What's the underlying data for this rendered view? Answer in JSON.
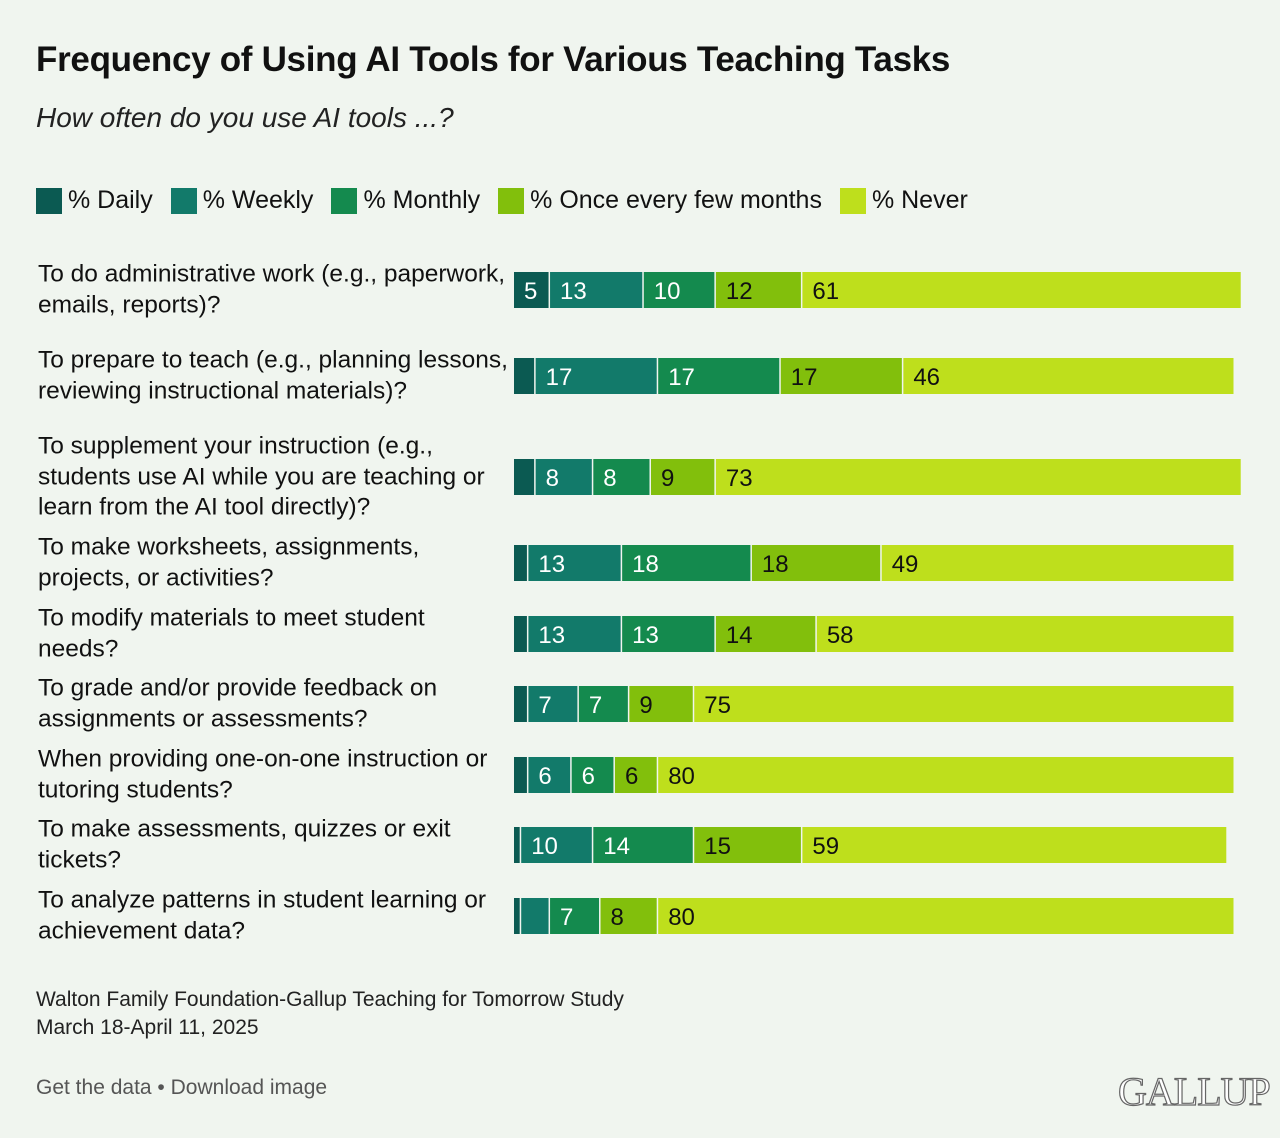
{
  "title": "Frequency of Using AI Tools for Various Teaching Tasks",
  "subtitle": "How often do you use AI tools ...?",
  "legend": [
    {
      "label": "% Daily",
      "color": "#0b5a52"
    },
    {
      "label": "% Weekly",
      "color": "#127a6a"
    },
    {
      "label": "% Monthly",
      "color": "#148a4e"
    },
    {
      "label": "% Once every few months",
      "color": "#82bf0c"
    },
    {
      "label": "% Never",
      "color": "#bedf1c"
    }
  ],
  "chart_data": {
    "type": "bar",
    "orientation": "horizontal",
    "stacked": true,
    "categories": [
      "To do administrative work (e.g., paperwork, emails, reports)?",
      "To prepare to teach (e.g., planning lessons, reviewing instructional materials)?",
      "To supplement your instruction (e.g., students use AI while you are teaching or learn from the AI tool directly)?",
      "To make worksheets, assignments, projects, or activities?",
      "To modify materials to meet student needs?",
      "To grade and/or provide feedback on assignments or assessments?",
      "When providing one-on-one instruction or tutoring students?",
      "To make assessments, quizzes or exit tickets?",
      "To analyze patterns in student learning or achievement data?"
    ],
    "series": [
      {
        "name": "% Daily",
        "color": "#0b5a52",
        "values": [
          5,
          3,
          3,
          2,
          2,
          2,
          2,
          1,
          1
        ]
      },
      {
        "name": "% Weekly",
        "color": "#127a6a",
        "values": [
          13,
          17,
          8,
          13,
          13,
          7,
          6,
          10,
          4
        ]
      },
      {
        "name": "% Monthly",
        "color": "#148a4e",
        "values": [
          10,
          17,
          8,
          18,
          13,
          7,
          6,
          14,
          7
        ]
      },
      {
        "name": "% Once every few months",
        "color": "#82bf0c",
        "values": [
          12,
          17,
          9,
          18,
          14,
          9,
          6,
          15,
          8
        ]
      },
      {
        "name": "% Never",
        "color": "#bedf1c",
        "values": [
          61,
          46,
          73,
          49,
          58,
          75,
          80,
          59,
          80
        ]
      }
    ],
    "data_labels": [
      [
        "5",
        "13",
        "10",
        "12",
        "61"
      ],
      [
        "",
        "17",
        "17",
        "17",
        "46"
      ],
      [
        "",
        "8",
        "8",
        "9",
        "73"
      ],
      [
        "",
        "13",
        "18",
        "18",
        "49"
      ],
      [
        "",
        "13",
        "13",
        "14",
        "58"
      ],
      [
        "",
        "7",
        "7",
        "9",
        "75"
      ],
      [
        "",
        "6",
        "6",
        "6",
        "80"
      ],
      [
        "",
        "10",
        "14",
        "15",
        "59"
      ],
      [
        "",
        "",
        "7",
        "8",
        "80"
      ]
    ],
    "xlim": [
      0,
      100
    ],
    "legend_position": "top-left",
    "grid": false
  },
  "source": {
    "line1": "Walton Family Foundation-Gallup Teaching for Tomorrow Study",
    "line2": "March 18-April 11, 2025"
  },
  "links": {
    "get_data": "Get the data",
    "separator": " • ",
    "download": "Download image"
  },
  "logo_text": "GALLUP"
}
